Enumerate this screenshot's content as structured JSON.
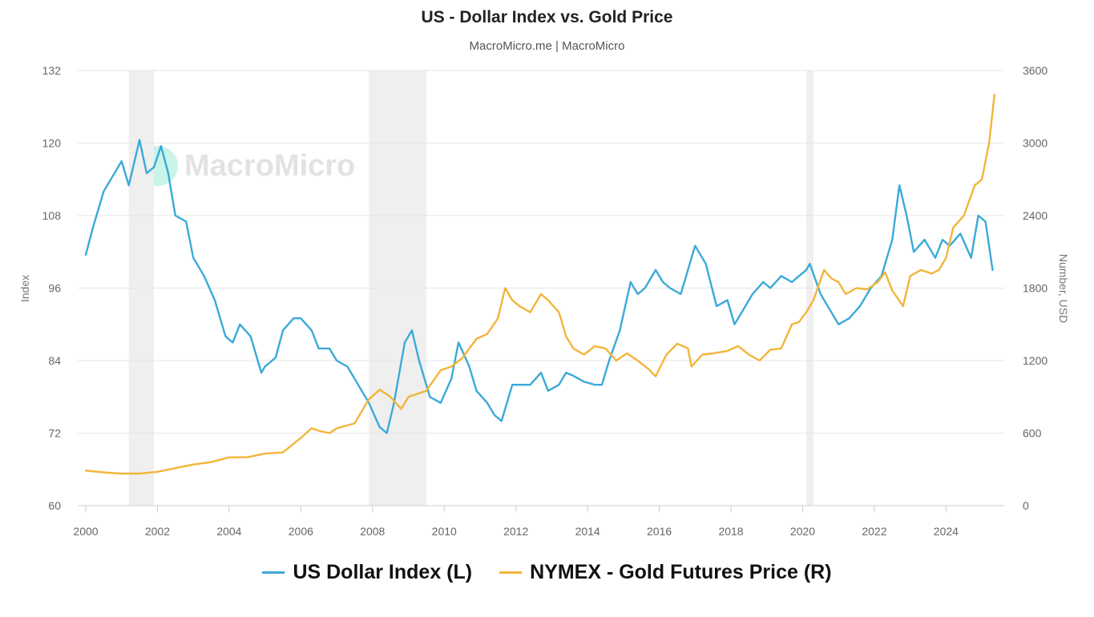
{
  "header": {
    "title": "US - Dollar Index vs. Gold Price",
    "subtitle": "MacroMicro.me | MacroMicro"
  },
  "watermark": {
    "text": "MacroMicro"
  },
  "legend": {
    "items": [
      {
        "label": "US Dollar Index (L)",
        "color": "#3aaad8"
      },
      {
        "label": "NYMEX - Gold Futures Price (R)",
        "color": "#f2b53a"
      }
    ]
  },
  "chart_data": {
    "type": "line",
    "title": "US - Dollar Index vs. Gold Price",
    "subtitle": "MacroMicro.me | MacroMicro",
    "x_range": [
      2000,
      2025.4
    ],
    "x_ticks": [
      "2000",
      "2002",
      "2004",
      "2006",
      "2008",
      "2010",
      "2012",
      "2014",
      "2016",
      "2018",
      "2020",
      "2022",
      "2024"
    ],
    "y_left": {
      "label": "Index",
      "range": [
        60,
        132
      ],
      "ticks": [
        "60",
        "72",
        "84",
        "96",
        "108",
        "120",
        "132"
      ]
    },
    "y_right": {
      "label": "Number, USD",
      "range": [
        0,
        3600
      ],
      "ticks": [
        "0",
        "600",
        "1200",
        "1800",
        "2400",
        "3000",
        "3600"
      ]
    },
    "grid": true,
    "legend_position": "bottom",
    "shaded_periods": [
      [
        2001.2,
        2001.9
      ],
      [
        2007.9,
        2009.5
      ],
      [
        2020.1,
        2020.3
      ]
    ],
    "series": [
      {
        "name": "US Dollar Index (L)",
        "axis": "left",
        "color": "#3aaad8",
        "x": [
          2000.0,
          2000.2,
          2000.5,
          2000.8,
          2001.0,
          2001.2,
          2001.5,
          2001.7,
          2001.9,
          2002.1,
          2002.3,
          2002.5,
          2002.8,
          2003.0,
          2003.3,
          2003.6,
          2003.9,
          2004.1,
          2004.3,
          2004.6,
          2004.9,
          2005.0,
          2005.3,
          2005.5,
          2005.8,
          2006.0,
          2006.3,
          2006.5,
          2006.8,
          2007.0,
          2007.3,
          2007.6,
          2007.9,
          2008.2,
          2008.4,
          2008.6,
          2008.9,
          2009.1,
          2009.3,
          2009.6,
          2009.9,
          2010.2,
          2010.4,
          2010.7,
          2010.9,
          2011.2,
          2011.4,
          2011.6,
          2011.9,
          2012.2,
          2012.4,
          2012.7,
          2012.9,
          2013.2,
          2013.4,
          2013.6,
          2013.9,
          2014.2,
          2014.4,
          2014.6,
          2014.9,
          2015.2,
          2015.4,
          2015.6,
          2015.9,
          2016.1,
          2016.3,
          2016.6,
          2016.9,
          2017.0,
          2017.3,
          2017.6,
          2017.9,
          2018.1,
          2018.3,
          2018.6,
          2018.9,
          2019.1,
          2019.4,
          2019.7,
          2019.9,
          2020.1,
          2020.2,
          2020.5,
          2020.8,
          2021.0,
          2021.3,
          2021.6,
          2021.9,
          2022.2,
          2022.5,
          2022.7,
          2022.9,
          2023.1,
          2023.4,
          2023.7,
          2023.9,
          2024.1,
          2024.4,
          2024.7,
          2024.9,
          2025.1,
          2025.3
        ],
        "values": [
          101.5,
          106,
          112,
          115,
          117,
          113,
          120.5,
          115,
          116,
          119.5,
          115,
          108,
          107,
          101,
          98,
          94,
          88,
          87,
          90,
          88,
          82,
          83,
          84.5,
          89,
          91,
          91,
          89,
          86,
          86,
          84,
          83,
          80,
          77,
          73,
          72,
          77,
          87,
          89,
          84,
          78,
          77,
          81,
          87,
          83,
          79,
          77,
          75,
          74,
          80,
          80,
          80,
          82,
          79,
          80,
          82,
          81.5,
          80.5,
          80,
          80,
          84,
          89,
          97,
          95,
          96,
          99,
          97,
          96,
          95,
          101,
          103,
          100,
          93,
          94,
          90,
          92,
          95,
          97,
          96,
          98,
          97,
          98,
          99,
          100,
          95,
          92,
          90,
          91,
          93,
          96,
          98,
          104,
          113,
          108,
          102,
          104,
          101,
          104,
          103,
          105,
          101,
          108,
          107,
          99
        ]
      },
      {
        "name": "NYMEX - Gold Futures Price (R)",
        "axis": "right",
        "color": "#f2b53a",
        "x": [
          2000.0,
          2000.5,
          2001.0,
          2001.5,
          2002.0,
          2002.5,
          2003.0,
          2003.5,
          2004.0,
          2004.5,
          2005.0,
          2005.5,
          2006.0,
          2006.3,
          2006.5,
          2006.8,
          2007.0,
          2007.5,
          2007.9,
          2008.2,
          2008.5,
          2008.8,
          2009.0,
          2009.5,
          2009.9,
          2010.2,
          2010.5,
          2010.9,
          2011.2,
          2011.5,
          2011.7,
          2011.9,
          2012.1,
          2012.4,
          2012.7,
          2012.9,
          2013.2,
          2013.4,
          2013.6,
          2013.9,
          2014.2,
          2014.5,
          2014.8,
          2015.1,
          2015.4,
          2015.7,
          2015.9,
          2016.2,
          2016.5,
          2016.8,
          2016.9,
          2017.2,
          2017.5,
          2017.9,
          2018.2,
          2018.5,
          2018.8,
          2019.1,
          2019.4,
          2019.7,
          2019.9,
          2020.1,
          2020.3,
          2020.6,
          2020.8,
          2021.0,
          2021.2,
          2021.5,
          2021.8,
          2022.1,
          2022.3,
          2022.5,
          2022.8,
          2023.0,
          2023.3,
          2023.6,
          2023.8,
          2024.0,
          2024.2,
          2024.5,
          2024.8,
          2025.0,
          2025.2,
          2025.35
        ],
        "values": [
          290,
          275,
          265,
          265,
          280,
          310,
          340,
          360,
          400,
          400,
          430,
          440,
          560,
          640,
          620,
          600,
          640,
          680,
          880,
          960,
          900,
          800,
          900,
          950,
          1120,
          1150,
          1220,
          1380,
          1420,
          1550,
          1800,
          1700,
          1650,
          1600,
          1750,
          1700,
          1600,
          1400,
          1300,
          1250,
          1320,
          1300,
          1200,
          1260,
          1200,
          1130,
          1070,
          1250,
          1340,
          1300,
          1150,
          1250,
          1260,
          1280,
          1320,
          1250,
          1200,
          1290,
          1300,
          1500,
          1520,
          1600,
          1700,
          1950,
          1880,
          1850,
          1750,
          1800,
          1790,
          1850,
          1930,
          1780,
          1650,
          1900,
          1950,
          1920,
          1950,
          2050,
          2300,
          2400,
          2650,
          2700,
          3000,
          3400
        ]
      }
    ]
  }
}
